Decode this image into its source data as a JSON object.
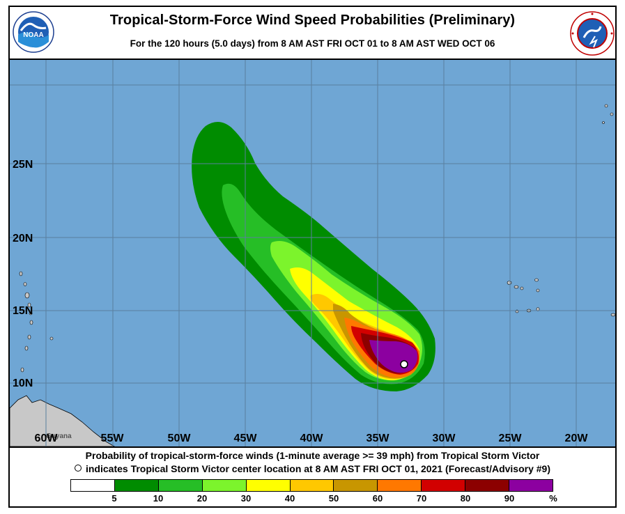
{
  "header": {
    "title": "Tropical-Storm-Force Wind Speed Probabilities (Preliminary)",
    "subtitle": "For the 120 hours (5.0 days) from 8 AM AST FRI OCT 01 to 8 AM AST WED OCT 06"
  },
  "logos": {
    "left": {
      "icon": "noaa-logo",
      "text": "NOAA"
    },
    "right": {
      "icon": "nws-logo",
      "text": "NATIONAL WEATHER SERVICE"
    }
  },
  "map": {
    "ocean_color": "#6fa6d4",
    "land_color": "#c8c8c8",
    "grid_color": "#5a7f9e",
    "latitude_labels": [
      "25N",
      "20N",
      "15N",
      "10N"
    ],
    "longitude_labels": [
      "60W",
      "55W",
      "50W",
      "45W",
      "40W",
      "35W",
      "30W",
      "25W",
      "20W"
    ],
    "place_label": "Guyana"
  },
  "caption": {
    "line1": "Probability of tropical-storm-force winds (1-minute average >= 39 mph) from Tropical Storm Victor",
    "line2": "indicates Tropical Storm Victor center location at 8 AM AST FRI OCT 01, 2021 (Forecast/Advisory #9)"
  },
  "legend": {
    "colors": [
      "#ffffff",
      "#008c00",
      "#26be26",
      "#7cf42c",
      "#ffff00",
      "#ffc800",
      "#c89600",
      "#ff7800",
      "#d20000",
      "#8c0000",
      "#8c00a0"
    ],
    "ticks": [
      "5",
      "10",
      "20",
      "30",
      "40",
      "50",
      "60",
      "70",
      "80",
      "90",
      "%"
    ]
  },
  "probability_contours": [
    {
      "level": "5-10",
      "color": "#008c00"
    },
    {
      "level": "10-20",
      "color": "#26be26"
    },
    {
      "level": "20-30",
      "color": "#7cf42c"
    },
    {
      "level": "30-40",
      "color": "#ffff00"
    },
    {
      "level": "40-50",
      "color": "#ffc800"
    },
    {
      "level": "50-60",
      "color": "#c89600"
    },
    {
      "level": "60-70",
      "color": "#ff7800"
    },
    {
      "level": "70-80",
      "color": "#d20000"
    },
    {
      "level": "80-90",
      "color": "#8c0000"
    },
    {
      "level": ">90",
      "color": "#8c00a0"
    }
  ]
}
